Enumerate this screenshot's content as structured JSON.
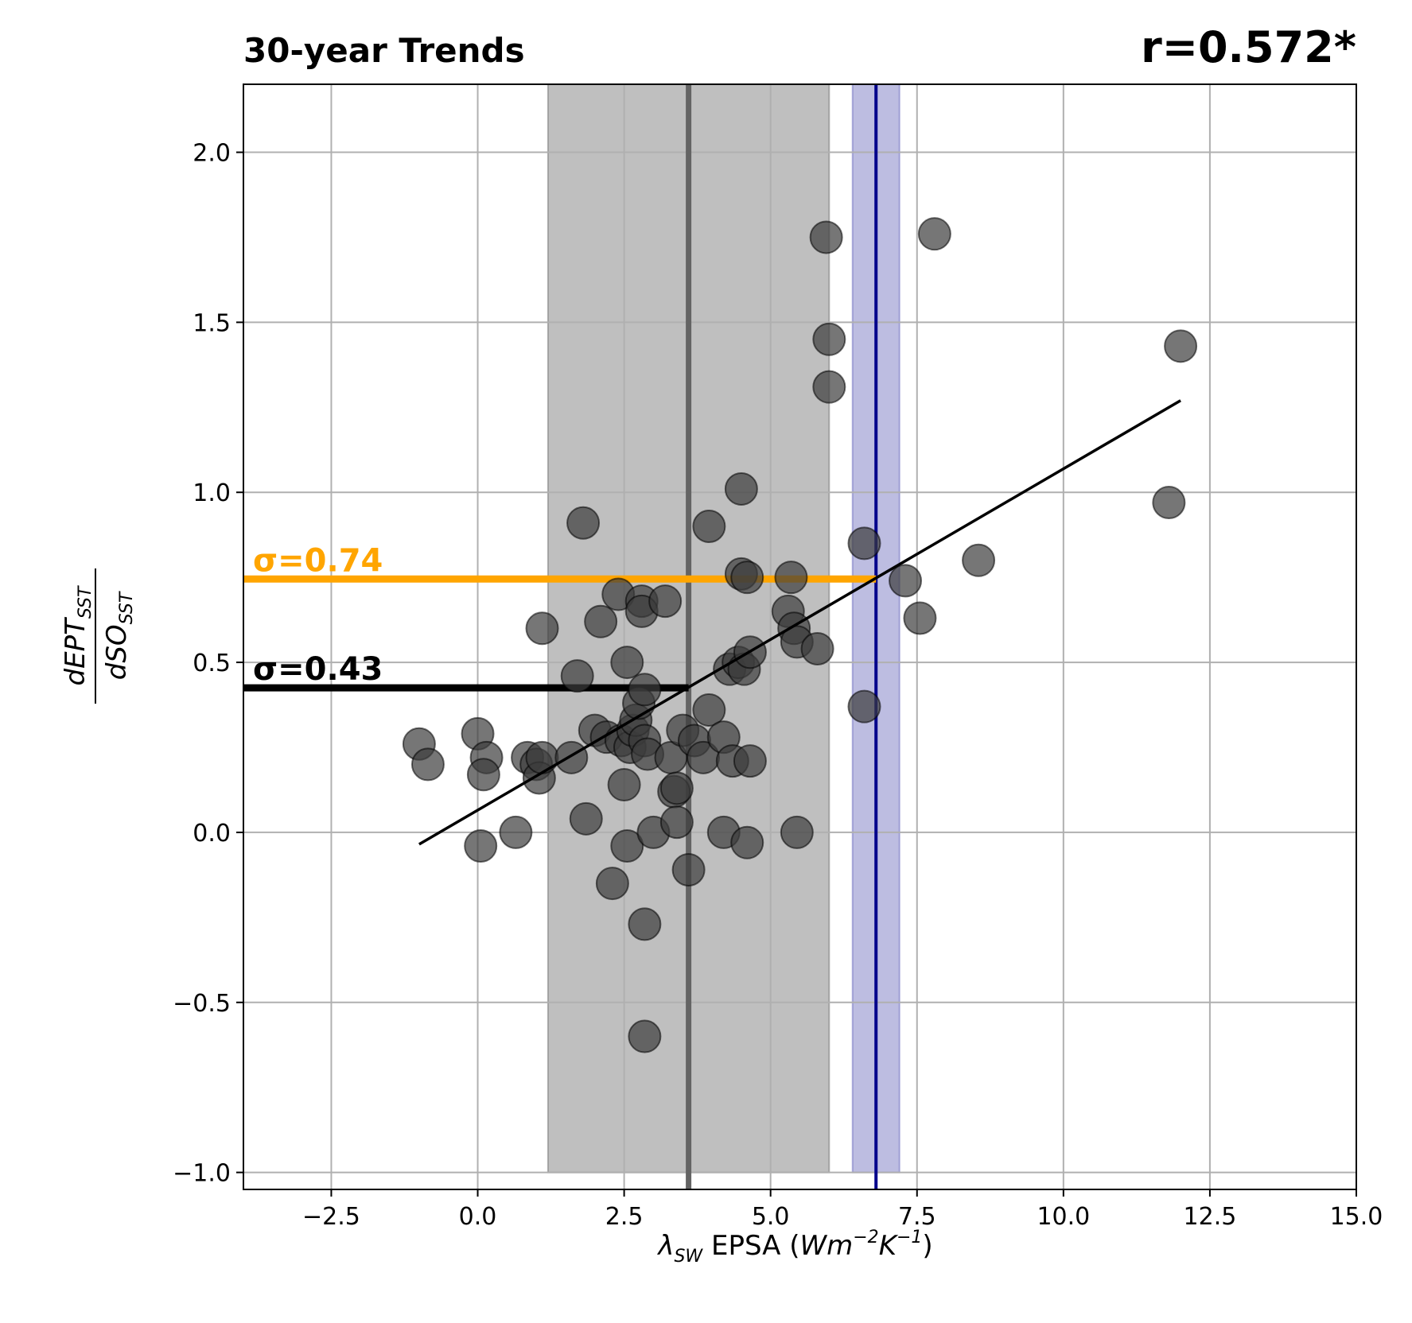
{
  "chart_data": {
    "type": "scatter",
    "title": "30-year Trends",
    "title_right": "r=0.572*",
    "xlabel": {
      "symbol": "λ",
      "sub": "SW",
      "text": " EPSA (",
      "unit_w": "Wm",
      "exp1": "−2",
      "unit_k": "K",
      "exp2": "−1",
      "close": ")"
    },
    "ylabel": {
      "num": "dEPT",
      "num_sub": "SST",
      "den": "dSO",
      "den_sub": "SST"
    },
    "xlim": [
      -4.0,
      15.0
    ],
    "ylim": [
      -1.05,
      2.2
    ],
    "xticks": [
      -2.5,
      0.0,
      2.5,
      5.0,
      7.5,
      10.0,
      12.5,
      15.0
    ],
    "xtick_labels": [
      "−2.5",
      "0.0",
      "2.5",
      "5.0",
      "7.5",
      "10.0",
      "12.5",
      "15.0"
    ],
    "yticks": [
      -1.0,
      -0.5,
      0.0,
      0.5,
      1.0,
      1.5,
      2.0
    ],
    "ytick_labels": [
      "−1.0",
      "−0.5",
      "0.0",
      "0.5",
      "1.0",
      "1.5",
      "2.0"
    ],
    "grid": true,
    "points": [
      [
        -1.0,
        0.26
      ],
      [
        -0.85,
        0.2
      ],
      [
        0.0,
        0.29
      ],
      [
        0.15,
        0.22
      ],
      [
        0.05,
        -0.04
      ],
      [
        0.1,
        0.17
      ],
      [
        0.65,
        0.0
      ],
      [
        0.85,
        0.22
      ],
      [
        1.0,
        0.2
      ],
      [
        1.05,
        0.16
      ],
      [
        1.1,
        0.22
      ],
      [
        1.1,
        0.6
      ],
      [
        1.6,
        0.22
      ],
      [
        1.7,
        0.46
      ],
      [
        1.8,
        0.91
      ],
      [
        1.85,
        0.04
      ],
      [
        2.0,
        0.3
      ],
      [
        2.1,
        0.62
      ],
      [
        2.2,
        0.28
      ],
      [
        2.3,
        -0.15
      ],
      [
        2.4,
        0.7
      ],
      [
        2.45,
        0.27
      ],
      [
        2.5,
        0.14
      ],
      [
        2.55,
        0.5
      ],
      [
        2.55,
        -0.04
      ],
      [
        2.6,
        0.25
      ],
      [
        2.65,
        0.3
      ],
      [
        2.7,
        0.33
      ],
      [
        2.75,
        0.38
      ],
      [
        2.8,
        0.68
      ],
      [
        2.8,
        0.65
      ],
      [
        2.85,
        0.42
      ],
      [
        2.85,
        0.27
      ],
      [
        2.9,
        0.23
      ],
      [
        2.85,
        -0.27
      ],
      [
        2.85,
        -0.6
      ],
      [
        3.0,
        0.0
      ],
      [
        3.2,
        0.68
      ],
      [
        3.3,
        0.22
      ],
      [
        3.35,
        0.12
      ],
      [
        3.4,
        0.13
      ],
      [
        3.4,
        0.03
      ],
      [
        3.5,
        0.3
      ],
      [
        3.6,
        -0.11
      ],
      [
        3.7,
        0.27
      ],
      [
        3.85,
        0.22
      ],
      [
        3.95,
        0.9
      ],
      [
        3.95,
        0.36
      ],
      [
        4.2,
        0.0
      ],
      [
        4.2,
        0.28
      ],
      [
        4.3,
        0.48
      ],
      [
        4.35,
        0.21
      ],
      [
        4.45,
        0.5
      ],
      [
        4.5,
        0.76
      ],
      [
        4.55,
        0.48
      ],
      [
        4.5,
        1.01
      ],
      [
        4.6,
        0.75
      ],
      [
        4.65,
        0.53
      ],
      [
        4.65,
        0.21
      ],
      [
        4.6,
        -0.03
      ],
      [
        5.3,
        0.65
      ],
      [
        5.4,
        0.6
      ],
      [
        5.35,
        0.75
      ],
      [
        5.45,
        0.56
      ],
      [
        5.45,
        0.0
      ],
      [
        5.8,
        0.54
      ],
      [
        5.95,
        1.75
      ],
      [
        6.0,
        1.45
      ],
      [
        6.0,
        1.31
      ],
      [
        6.6,
        0.85
      ],
      [
        6.6,
        0.37
      ],
      [
        7.3,
        0.74
      ],
      [
        7.55,
        0.63
      ],
      [
        7.8,
        1.76
      ],
      [
        8.55,
        0.8
      ],
      [
        11.8,
        0.97
      ],
      [
        12.0,
        1.43
      ]
    ],
    "regression": {
      "x": [
        -1.0,
        12.0
      ],
      "y": [
        -0.035,
        1.27
      ]
    },
    "shaded_bands": [
      {
        "name": "grey-band",
        "xmin": 1.2,
        "xmax": 6.0,
        "color": "#808080"
      },
      {
        "name": "blue-band",
        "xmin": 6.4,
        "xmax": 7.2,
        "color": "#7b7bc4"
      }
    ],
    "vertical_lines": [
      {
        "name": "grey-line",
        "x": 3.6,
        "color": "#646464"
      },
      {
        "name": "navy-line",
        "x": 6.8,
        "color": "#00008b"
      }
    ],
    "horizontal_segments": [
      {
        "name": "orange-segment",
        "y": 0.745,
        "x_end": 6.8,
        "color": "#ffa500",
        "label": "σ=0.74"
      },
      {
        "name": "black-segment",
        "y": 0.425,
        "x_end": 3.6,
        "color": "#000000",
        "label": "σ=0.43"
      }
    ],
    "point_color": "#3c3c3c"
  }
}
